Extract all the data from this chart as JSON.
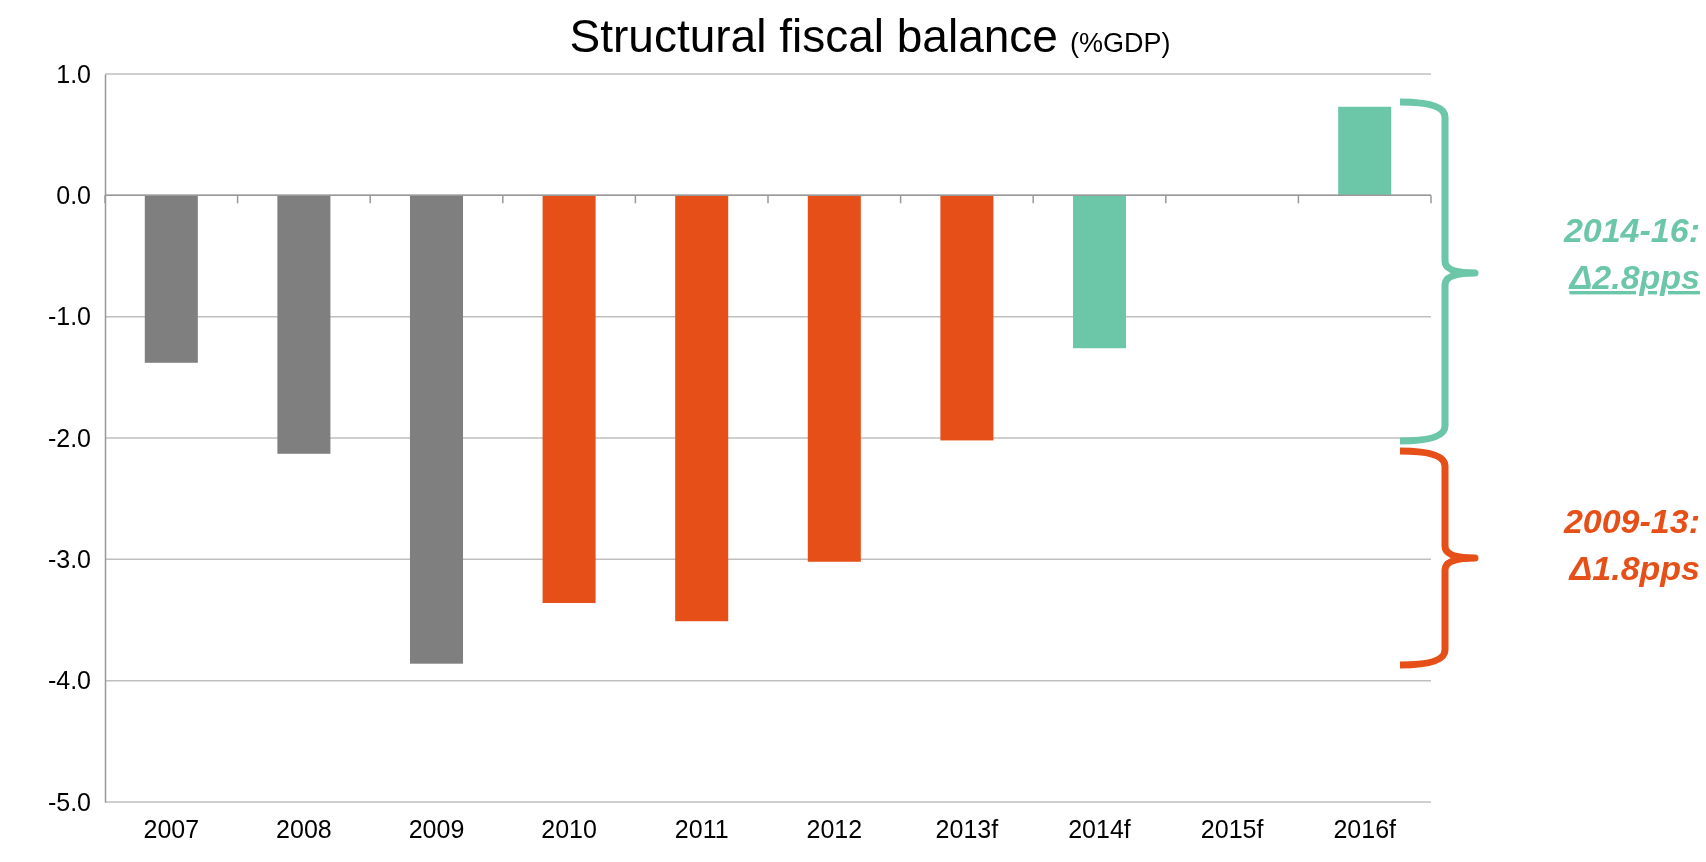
{
  "chart_data": {
    "type": "bar",
    "title": "Structural fiscal balance",
    "subtitle": "(%GDP)",
    "categories": [
      "2007",
      "2008",
      "2009",
      "2010",
      "2011",
      "2012",
      "2013f",
      "2014f",
      "2015f",
      "2016f"
    ],
    "values": [
      -1.38,
      -2.13,
      -3.86,
      -3.36,
      -3.51,
      -3.02,
      -2.02,
      -1.26,
      null,
      0.73
    ],
    "colors": [
      "#7f7f7f",
      "#7f7f7f",
      "#7f7f7f",
      "#e64f17",
      "#e64f17",
      "#e64f17",
      "#e64f17",
      "#6cc6a8",
      null,
      "#6cc6a8"
    ],
    "ylim": [
      -5,
      1
    ],
    "yticks": [
      {
        "value": -5,
        "label": "-5.0"
      },
      {
        "value": -4,
        "label": "-4.0"
      },
      {
        "value": -3,
        "label": "-3.0"
      },
      {
        "value": -2,
        "label": "-2.0"
      },
      {
        "value": -1,
        "label": "-1.0"
      },
      {
        "value": 0,
        "label": "0.0"
      },
      {
        "value": 1,
        "label": "1.0"
      }
    ],
    "grid": "y",
    "annotations": [
      "2014-16: Δ2.8pps",
      "2009-13: Δ1.8pps"
    ]
  }
}
